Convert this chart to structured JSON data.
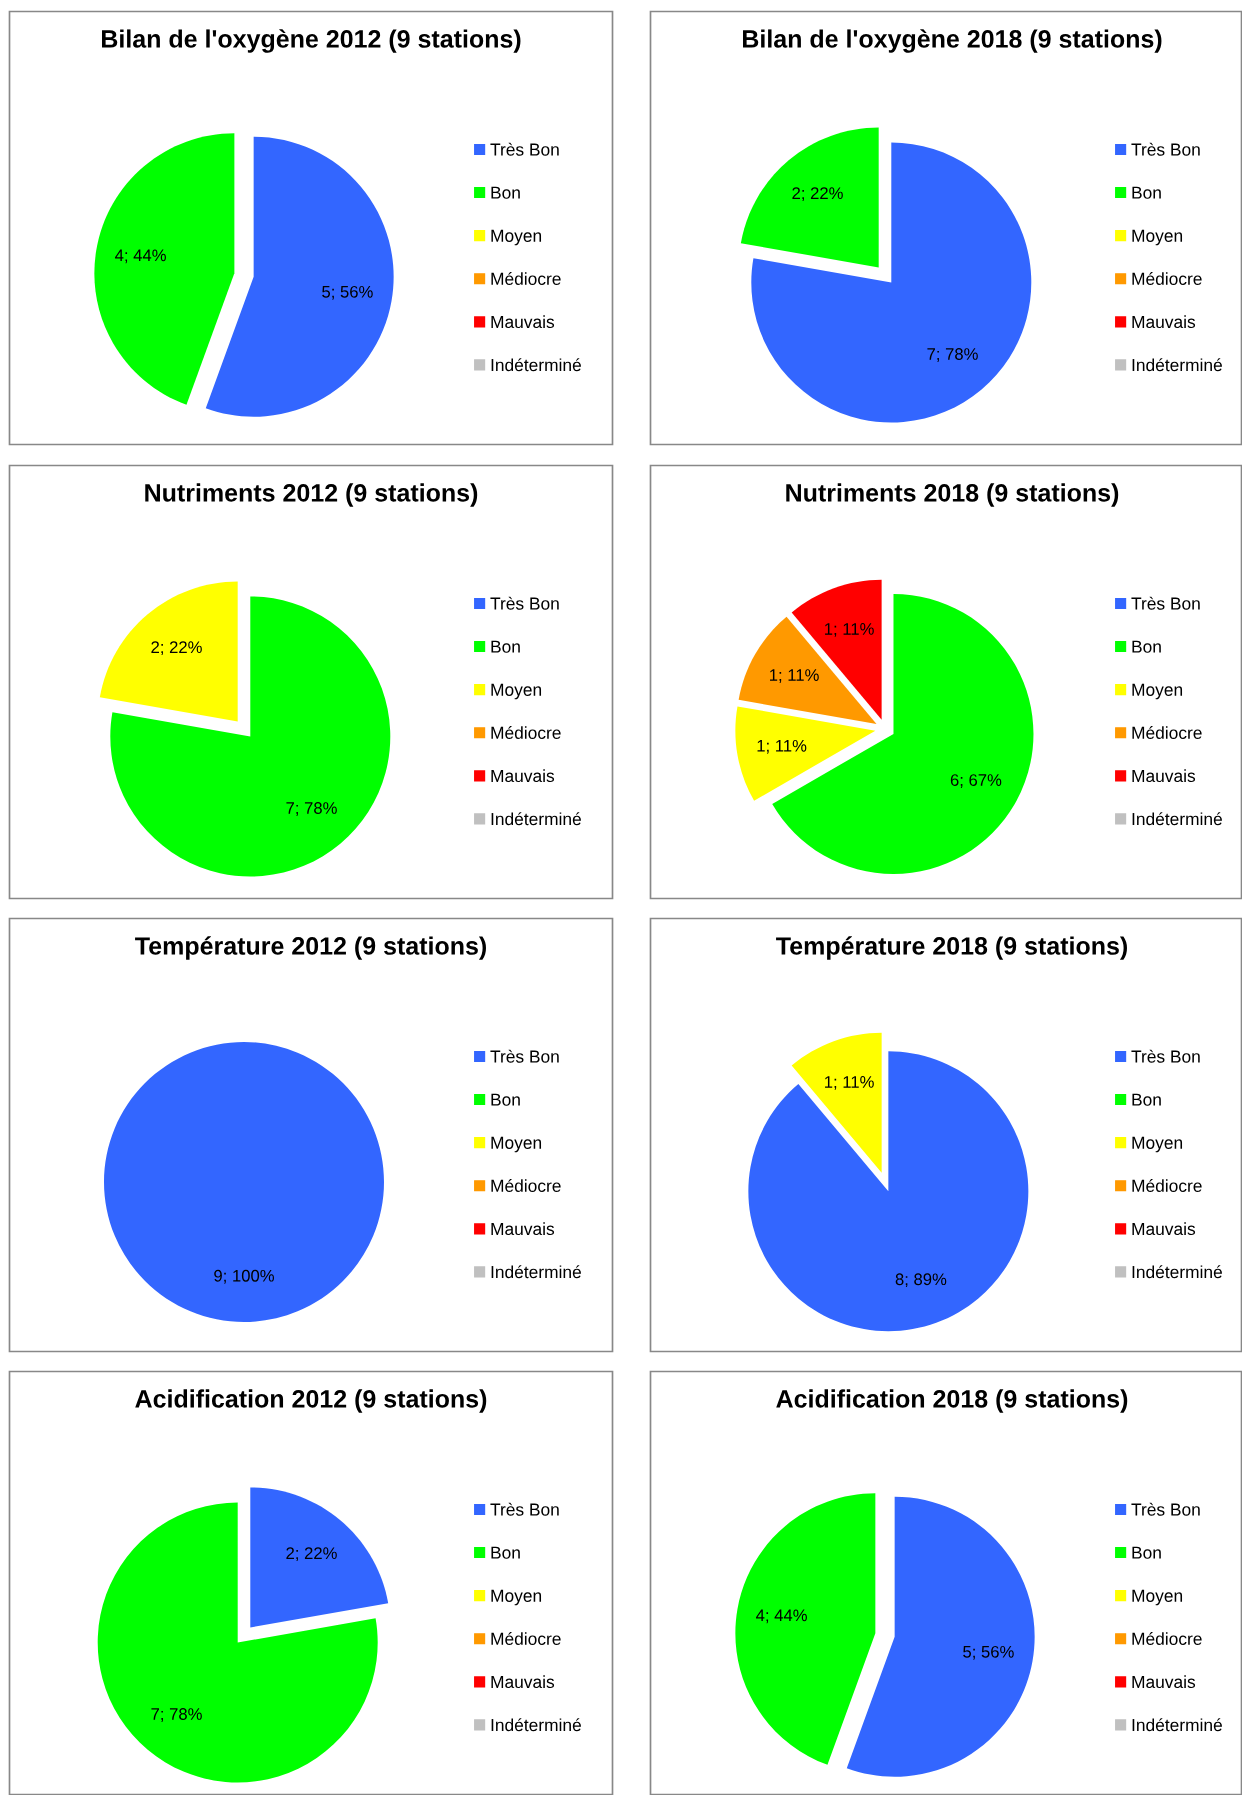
{
  "chart_data": [
    {
      "type": "pie",
      "title": "Bilan de l'oxygène 2012 (9 stations)",
      "categories": [
        "Très Bon",
        "Bon",
        "Moyen",
        "Médiocre",
        "Mauvais",
        "Indéterminé"
      ],
      "values": [
        5,
        4,
        0,
        0,
        0,
        0
      ],
      "value_labels": [
        "5; 56%",
        "4; 44%",
        null,
        null,
        null,
        null
      ],
      "colors": [
        "#3366ff",
        "#00ff00",
        "#ffff00",
        "#ff9900",
        "#ff0000",
        "#c0c0c0"
      ],
      "legend": "right"
    },
    {
      "type": "pie",
      "title": "Bilan de l'oxygène 2018 (9 stations)",
      "categories": [
        "Très Bon",
        "Bon",
        "Moyen",
        "Médiocre",
        "Mauvais",
        "Indéterminé"
      ],
      "values": [
        7,
        2,
        0,
        0,
        0,
        0
      ],
      "value_labels": [
        "7; 78%",
        "2; 22%",
        null,
        null,
        null,
        null
      ],
      "colors": [
        "#3366ff",
        "#00ff00",
        "#ffff00",
        "#ff9900",
        "#ff0000",
        "#c0c0c0"
      ],
      "legend": "right"
    },
    {
      "type": "pie",
      "title": "Nutriments 2012 (9 stations)",
      "categories": [
        "Très Bon",
        "Bon",
        "Moyen",
        "Médiocre",
        "Mauvais",
        "Indéterminé"
      ],
      "values": [
        0,
        7,
        2,
        0,
        0,
        0
      ],
      "value_labels": [
        null,
        "7; 78%",
        "2; 22%",
        null,
        null,
        null
      ],
      "colors": [
        "#3366ff",
        "#00ff00",
        "#ffff00",
        "#ff9900",
        "#ff0000",
        "#c0c0c0"
      ],
      "legend": "right"
    },
    {
      "type": "pie",
      "title": "Nutriments 2018 (9 stations)",
      "categories": [
        "Très Bon",
        "Bon",
        "Moyen",
        "Médiocre",
        "Mauvais",
        "Indéterminé"
      ],
      "values": [
        0,
        6,
        1,
        1,
        1,
        0
      ],
      "value_labels": [
        null,
        "6; 67%",
        "1; 11%",
        "1; 11%",
        "1; 11%",
        null
      ],
      "colors": [
        "#3366ff",
        "#00ff00",
        "#ffff00",
        "#ff9900",
        "#ff0000",
        "#c0c0c0"
      ],
      "legend": "right"
    },
    {
      "type": "pie",
      "title": "Température 2012 (9 stations)",
      "categories": [
        "Très Bon",
        "Bon",
        "Moyen",
        "Médiocre",
        "Mauvais",
        "Indéterminé"
      ],
      "values": [
        9,
        0,
        0,
        0,
        0,
        0
      ],
      "value_labels": [
        "9; 100%",
        null,
        null,
        null,
        null,
        null
      ],
      "colors": [
        "#3366ff",
        "#00ff00",
        "#ffff00",
        "#ff9900",
        "#ff0000",
        "#c0c0c0"
      ],
      "legend": "right"
    },
    {
      "type": "pie",
      "title": "Température 2018 (9 stations)",
      "categories": [
        "Très Bon",
        "Bon",
        "Moyen",
        "Médiocre",
        "Mauvais",
        "Indéterminé"
      ],
      "values": [
        8,
        0,
        1,
        0,
        0,
        0
      ],
      "value_labels": [
        "8; 89%",
        null,
        "1; 11%",
        null,
        null,
        null
      ],
      "colors": [
        "#3366ff",
        "#00ff00",
        "#ffff00",
        "#ff9900",
        "#ff0000",
        "#c0c0c0"
      ],
      "legend": "right"
    },
    {
      "type": "pie",
      "title": "Acidification 2012 (9 stations)",
      "categories": [
        "Très Bon",
        "Bon",
        "Moyen",
        "Médiocre",
        "Mauvais",
        "Indéterminé"
      ],
      "values": [
        2,
        7,
        0,
        0,
        0,
        0
      ],
      "value_labels": [
        "2; 22%",
        "7; 78%",
        null,
        null,
        null,
        null
      ],
      "colors": [
        "#3366ff",
        "#00ff00",
        "#ffff00",
        "#ff9900",
        "#ff0000",
        "#c0c0c0"
      ],
      "legend": "right"
    },
    {
      "type": "pie",
      "title": "Acidification 2018 (9 stations)",
      "categories": [
        "Très Bon",
        "Bon",
        "Moyen",
        "Médiocre",
        "Mauvais",
        "Indéterminé"
      ],
      "values": [
        5,
        4,
        0,
        0,
        0,
        0
      ],
      "value_labels": [
        "5; 56%",
        "4; 44%",
        null,
        null,
        null,
        null
      ],
      "colors": [
        "#3366ff",
        "#00ff00",
        "#ffff00",
        "#ff9900",
        "#ff0000",
        "#c0c0c0"
      ],
      "legend": "right"
    }
  ]
}
